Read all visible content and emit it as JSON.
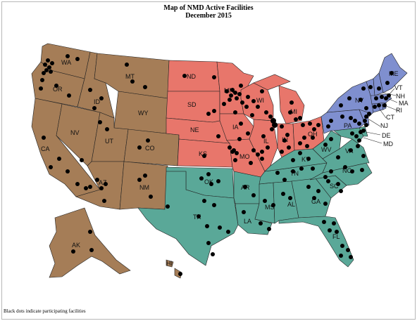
{
  "title": {
    "line1": "Map of NMD Active Facilities",
    "line2": "December 2015"
  },
  "footnote": "Black dots indicate participating facilities",
  "colors": {
    "west": "#a57d57",
    "midwest": "#e8766b",
    "south": "#5aa898",
    "northeast": "#7f8fcf",
    "border": "#222222",
    "dot": "#000000"
  },
  "states": {
    "WA": "WA",
    "OR": "OR",
    "CA": "CA",
    "NV": "NV",
    "ID": "ID",
    "MT": "MT",
    "WY": "WY",
    "UT": "UT",
    "CO": "CO",
    "AZ": "AZ",
    "NM": "NM",
    "AK": "AK",
    "HI": "HI",
    "ND": "ND",
    "SD": "SD",
    "NE": "NE",
    "KS": "KS",
    "MN": "MN",
    "IA": "IA",
    "MO": "MO",
    "WI": "WI",
    "IL": "IL",
    "IN": "IN",
    "MI": "MI",
    "OH": "OH",
    "OK": "OK",
    "TX": "TX",
    "AR": "AR",
    "LA": "LA",
    "MS": "MS",
    "AL": "AL",
    "TN": "TN",
    "KY": "KY",
    "GA": "GA",
    "FL": "FL",
    "SC": "SC",
    "NC": "NC",
    "VA": "VA",
    "WV": "WV",
    "DE": "DE",
    "MD": "MD",
    "PA": "PA",
    "NY": "NY",
    "NJ": "NJ",
    "CT": "CT",
    "RI": "RI",
    "MA": "MA",
    "VT": "VT",
    "NH": "NH",
    "ME": "ME"
  },
  "facility_markers": {
    "WA": 9,
    "OR": 4,
    "CA": 7,
    "NV": 1,
    "ID": 1,
    "MT": 3,
    "WY": 1,
    "UT": 3,
    "CO": 2,
    "AZ": 4,
    "NM": 3,
    "AK": 3,
    "HI": 1,
    "ND": 2,
    "SD": 2,
    "NE": 1,
    "KS": 3,
    "MN": 10,
    "IA": 4,
    "MO": 7,
    "WI": 8,
    "IL": 6,
    "IN": 5,
    "MI": 4,
    "OH": 8,
    "OK": 4,
    "TX": 9,
    "AR": 2,
    "LA": 3,
    "MS": 2,
    "AL": 2,
    "TN": 5,
    "KY": 3,
    "GA": 4,
    "FL": 8,
    "SC": 3,
    "NC": 5,
    "VA": 4,
    "WV": 2,
    "DE": 1,
    "MD": 4,
    "PA": 6,
    "NY": 6,
    "NJ": 3,
    "CT": 2,
    "RI": 1,
    "MA": 4,
    "VT": 1,
    "NH": 1,
    "ME": 2
  }
}
